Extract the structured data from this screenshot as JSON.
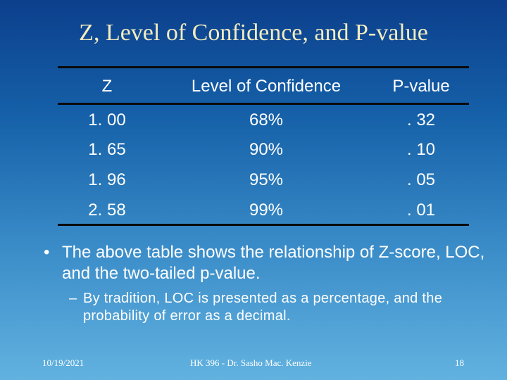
{
  "slide": {
    "title": "Z, Level of Confidence, and P-value"
  },
  "table": {
    "headers": [
      "Z",
      "Level of Confidence",
      "P-value"
    ],
    "rows": [
      [
        "1. 00",
        "68%",
        ". 32"
      ],
      [
        "1. 65",
        "90%",
        ". 10"
      ],
      [
        "1. 96",
        "95%",
        ". 05"
      ],
      [
        "2. 58",
        "99%",
        ". 01"
      ]
    ]
  },
  "bullets": {
    "main": "The above table shows the relationship of Z-score, LOC, and the two-tailed p-value.",
    "main_marker": "•",
    "sub": "By tradition, LOC is presented as a percentage, and the probability of error as a decimal.",
    "sub_marker": "–"
  },
  "footer": {
    "date": "10/19/2021",
    "center": "HK 396 - Dr. Sasho Mac. Kenzie",
    "page": "18"
  }
}
